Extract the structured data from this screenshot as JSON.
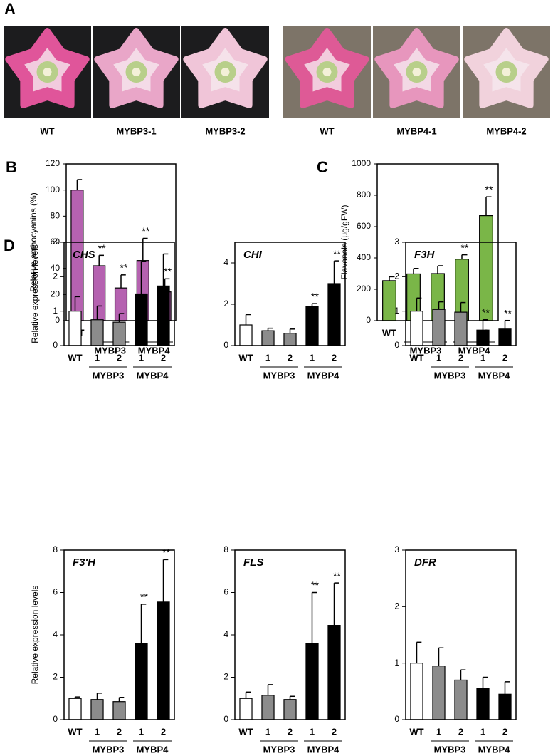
{
  "panel_a": {
    "label": "A",
    "photos": [
      "WT",
      "MYBP3-1",
      "MYBP3-2",
      "WT",
      "MYBP4-1",
      "MYBP4-2"
    ]
  },
  "chart_data": [
    {
      "type": "bar",
      "panel": "B",
      "ylabel": "Relative anthocyanins (%)",
      "categories": [
        "WT",
        "1",
        "2",
        "1",
        "2"
      ],
      "groups": [
        "MYBP3",
        "MYBP4"
      ],
      "values": [
        100,
        42,
        25,
        46,
        22
      ],
      "errors": [
        8,
        8,
        10,
        17,
        10
      ],
      "annotations": [
        null,
        "**",
        "**",
        "**",
        "**"
      ],
      "color": "#b562b0",
      "ylim": [
        0,
        120
      ],
      "yticks": [
        0,
        20,
        40,
        60,
        80,
        100,
        120
      ]
    },
    {
      "type": "bar",
      "panel": "C",
      "ylabel": "Flavonols (μg/gFW)",
      "categories": [
        "WT",
        "1",
        "2",
        "1",
        "2"
      ],
      "groups": [
        "MYBP3",
        "MYBP4"
      ],
      "values": [
        255,
        298,
        300,
        392,
        670
      ],
      "errors": [
        25,
        35,
        50,
        28,
        120
      ],
      "annotations": [
        null,
        null,
        null,
        "**",
        "**"
      ],
      "color": "#7ab648",
      "ylim": [
        0,
        1000
      ],
      "yticks": [
        0,
        200,
        400,
        600,
        800,
        1000
      ]
    },
    {
      "type": "bar",
      "panel": "D",
      "title": "CHS",
      "ylabel": "Relative expression levels",
      "categories": [
        "WT",
        "1",
        "2",
        "1",
        "2"
      ],
      "groups": [
        "MYBP3",
        "MYBP4"
      ],
      "values": [
        1.0,
        0.75,
        0.68,
        1.5,
        1.73
      ],
      "errors": [
        0.42,
        0.4,
        0.25,
        0.95,
        0.93
      ],
      "colors": [
        "#ffffff",
        "#8c8c8c",
        "#8c8c8c",
        "#000000",
        "#000000"
      ],
      "ylim": [
        0,
        3
      ],
      "yticks": [
        0,
        1,
        2,
        3
      ]
    },
    {
      "type": "bar",
      "title": "CHI",
      "categories": [
        "WT",
        "1",
        "2",
        "1",
        "2"
      ],
      "groups": [
        "MYBP3",
        "MYBP4"
      ],
      "values": [
        1.0,
        0.72,
        0.6,
        1.88,
        3.0
      ],
      "errors": [
        0.5,
        0.12,
        0.2,
        0.15,
        1.1
      ],
      "annotations": [
        null,
        null,
        null,
        "**",
        "**"
      ],
      "colors": [
        "#ffffff",
        "#8c8c8c",
        "#8c8c8c",
        "#000000",
        "#000000"
      ],
      "ylim": [
        0,
        5
      ],
      "yticks": [
        0,
        2,
        4
      ]
    },
    {
      "type": "bar",
      "title": "F3H",
      "categories": [
        "WT",
        "1",
        "2",
        "1",
        "2"
      ],
      "groups": [
        "MYBP3",
        "MYBP4"
      ],
      "values": [
        1.0,
        1.05,
        0.97,
        0.45,
        0.48
      ],
      "errors": [
        0.38,
        0.22,
        0.28,
        0.3,
        0.25
      ],
      "annotations": [
        null,
        null,
        null,
        "**",
        "**"
      ],
      "colors": [
        "#ffffff",
        "#8c8c8c",
        "#8c8c8c",
        "#000000",
        "#000000"
      ],
      "ylim": [
        0,
        3
      ],
      "yticks": [
        0,
        1,
        2,
        3
      ]
    },
    {
      "type": "bar",
      "title": "F3′H",
      "ylabel": "Relative expression levels",
      "categories": [
        "WT",
        "1",
        "2",
        "1",
        "2"
      ],
      "groups": [
        "MYBP3",
        "MYBP4"
      ],
      "values": [
        1.0,
        0.95,
        0.85,
        3.6,
        5.55
      ],
      "errors": [
        0.07,
        0.3,
        0.2,
        1.85,
        2.0
      ],
      "annotations": [
        null,
        null,
        null,
        "**",
        "**"
      ],
      "colors": [
        "#ffffff",
        "#8c8c8c",
        "#8c8c8c",
        "#000000",
        "#000000"
      ],
      "ylim": [
        0,
        8
      ],
      "yticks": [
        0,
        2,
        4,
        6,
        8
      ]
    },
    {
      "type": "bar",
      "title": "FLS",
      "categories": [
        "WT",
        "1",
        "2",
        "1",
        "2"
      ],
      "groups": [
        "MYBP3",
        "MYBP4"
      ],
      "values": [
        1.0,
        1.15,
        0.95,
        3.6,
        4.45
      ],
      "errors": [
        0.3,
        0.5,
        0.15,
        2.4,
        2.0
      ],
      "annotations": [
        null,
        null,
        null,
        "**",
        "**"
      ],
      "colors": [
        "#ffffff",
        "#8c8c8c",
        "#8c8c8c",
        "#000000",
        "#000000"
      ],
      "ylim": [
        0,
        8
      ],
      "yticks": [
        0,
        2,
        4,
        6,
        8
      ]
    },
    {
      "type": "bar",
      "title": "DFR",
      "categories": [
        "WT",
        "1",
        "2",
        "1",
        "2"
      ],
      "groups": [
        "MYBP3",
        "MYBP4"
      ],
      "values": [
        1.0,
        0.95,
        0.7,
        0.55,
        0.45
      ],
      "errors": [
        0.37,
        0.32,
        0.18,
        0.2,
        0.22
      ],
      "colors": [
        "#ffffff",
        "#8c8c8c",
        "#8c8c8c",
        "#000000",
        "#000000"
      ],
      "ylim": [
        0,
        3
      ],
      "yticks": [
        0,
        1,
        2,
        3
      ]
    }
  ]
}
